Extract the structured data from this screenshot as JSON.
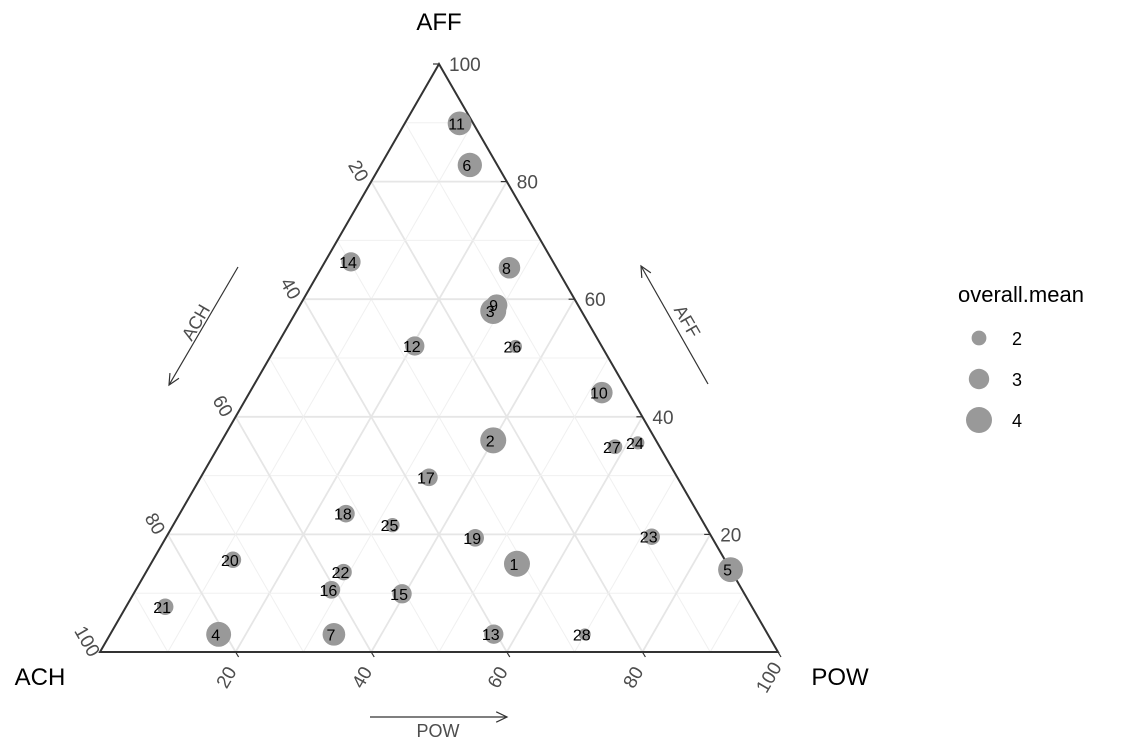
{
  "chart_data": {
    "type": "scatter",
    "subtype": "ternary",
    "vertices": {
      "top": "AFF",
      "left": "ACH",
      "right": "POW"
    },
    "axis_titles": {
      "left": "ACH",
      "right": "AFF",
      "bottom": "POW"
    },
    "ticks": [
      "20",
      "40",
      "60",
      "80",
      "100"
    ],
    "grid": true,
    "point_color": "#999999",
    "size_variable": "overall.mean",
    "legend": {
      "title": "overall.mean",
      "placement": "right",
      "items": [
        {
          "label": "2",
          "value": 2
        },
        {
          "label": "3",
          "value": 3
        },
        {
          "label": "4",
          "value": 4
        }
      ]
    },
    "points": [
      {
        "label": "1",
        "ACH": 31,
        "POW": 54,
        "AFF": 15,
        "size": 4.0
      },
      {
        "label": "2",
        "ACH": 24,
        "POW": 40,
        "AFF": 36,
        "size": 4.0
      },
      {
        "label": "3",
        "ACH": 13,
        "POW": 29,
        "AFF": 58,
        "size": 4.0
      },
      {
        "label": "4",
        "ACH": 81,
        "POW": 16,
        "AFF": 3,
        "size": 3.8
      },
      {
        "label": "5",
        "ACH": 0,
        "POW": 86,
        "AFF": 14,
        "size": 3.8
      },
      {
        "label": "6",
        "ACH": 4,
        "POW": 13,
        "AFF": 82,
        "size": 3.7
      },
      {
        "label": "7",
        "ACH": 64,
        "POW": 33,
        "AFF": 3,
        "size": 3.4
      },
      {
        "label": "8",
        "ACH": 7,
        "POW": 28,
        "AFF": 66,
        "size": 3.2
      },
      {
        "label": "9",
        "ACH": 12,
        "POW": 29,
        "AFF": 59,
        "size": 3.2
      },
      {
        "label": "10",
        "ACH": 4,
        "POW": 53,
        "AFF": 45,
        "size": 3.2
      },
      {
        "label": "11",
        "ACH": 2,
        "POW": 8,
        "AFF": 89,
        "size": 3.6
      },
      {
        "label": "12",
        "ACH": 27,
        "POW": 20,
        "AFF": 51,
        "size": 2.8
      },
      {
        "label": "13",
        "ACH": 40,
        "POW": 56,
        "AFF": 3,
        "size": 2.8
      },
      {
        "label": "14",
        "ACH": 31,
        "POW": 4,
        "AFF": 69,
        "size": 2.8
      },
      {
        "label": "15",
        "ACH": 51,
        "POW": 40,
        "AFF": 10,
        "size": 2.8
      },
      {
        "label": "16",
        "ACH": 63,
        "POW": 30,
        "AFF": 11,
        "size": 2.5
      },
      {
        "label": "17",
        "ACH": 37,
        "POW": 34,
        "AFF": 30,
        "size": 2.5
      },
      {
        "label": "18",
        "ACH": 53,
        "POW": 25,
        "AFF": 24,
        "size": 2.5
      },
      {
        "label": "19",
        "ACH": 36,
        "POW": 47,
        "AFF": 20,
        "size": 2.5
      },
      {
        "label": "20",
        "ACH": 74,
        "POW": 12,
        "AFF": 16,
        "size": 2.3
      },
      {
        "label": "21",
        "ACH": 90,
        "POW": 6,
        "AFF": 8,
        "size": 2.3
      },
      {
        "label": "22",
        "ACH": 59,
        "POW": 30,
        "AFF": 14,
        "size": 2.3
      },
      {
        "label": "23",
        "ACH": 9,
        "POW": 73,
        "AFF": 20,
        "size": 2.3
      },
      {
        "label": "24",
        "ACH": 3,
        "POW": 64,
        "AFF": 37,
        "size": 1.7
      },
      {
        "label": "25",
        "ACH": 47,
        "POW": 33,
        "AFF": 22,
        "size": 1.9
      },
      {
        "label": "26",
        "ACH": 13,
        "POW": 36,
        "AFF": 53,
        "size": 1.7
      },
      {
        "label": "27",
        "ACH": 7,
        "POW": 62,
        "AFF": 37,
        "size": 2.0
      },
      {
        "label": "28",
        "ACH": 27,
        "POW": 70,
        "AFF": 3,
        "size": 1.5
      }
    ]
  }
}
